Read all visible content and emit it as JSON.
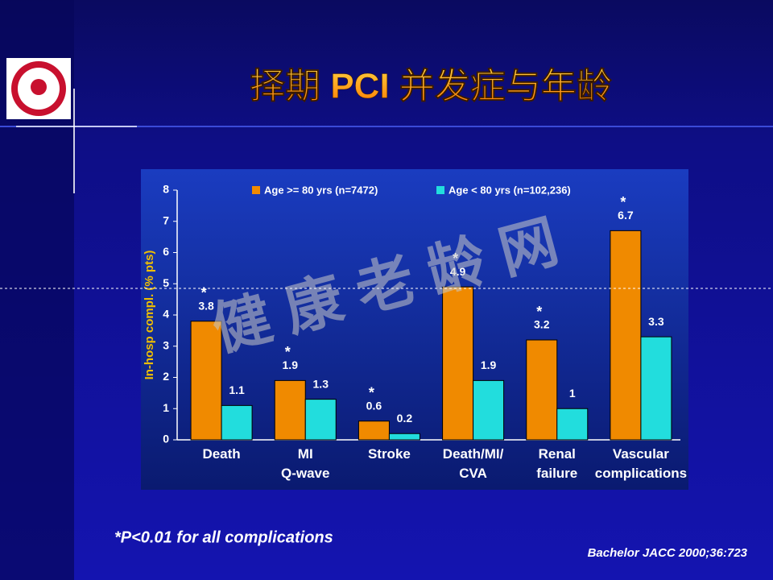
{
  "slide_title": "择期 PCI 并发症与年龄",
  "watermark": "健 康 老 龄 网",
  "footnote": "*P<0.01 for all complications",
  "citation": "Bachelor JACC 2000;36:723",
  "chart_data": {
    "type": "bar",
    "y_label": "In-hosp compl. (% pts)",
    "categories": [
      "Death",
      "MI\nQ-wave",
      "Stroke",
      "Death/MI/\nCVA",
      "Renal\nfailure",
      "Vascular\ncomplications"
    ],
    "series": [
      {
        "name": "Age >= 80 yrs (n=7472)",
        "color": "#f08a00",
        "values": [
          3.8,
          1.9,
          0.6,
          4.9,
          3.2,
          6.7
        ],
        "annotations": [
          "*",
          "*",
          "*",
          "*",
          "*",
          "*"
        ]
      },
      {
        "name": "Age < 80 yrs (n=102,236)",
        "color": "#22dddd",
        "values": [
          1.1,
          1.3,
          0.2,
          1.9,
          1,
          3.3
        ]
      }
    ],
    "ylim": [
      0,
      8
    ],
    "yticks": [
      0,
      1,
      2,
      3,
      4,
      5,
      6,
      7,
      8
    ]
  }
}
